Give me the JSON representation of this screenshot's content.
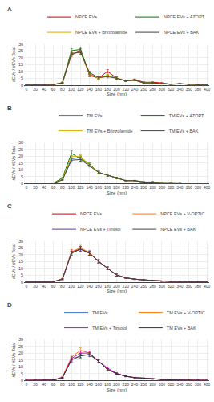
{
  "chart_data": [
    {
      "type": "line",
      "title": "A",
      "xlabel": "Size (nm)",
      "ylabel": "#EVs / #EVs Total",
      "x": [
        0,
        20,
        40,
        60,
        80,
        100,
        120,
        140,
        160,
        180,
        200,
        220,
        240,
        260,
        280,
        300,
        320,
        340,
        360,
        380,
        400
      ],
      "xlim": [
        -5,
        405
      ],
      "xticks": [
        0,
        20,
        40,
        60,
        80,
        100,
        120,
        140,
        160,
        180,
        200,
        220,
        240,
        260,
        280,
        300,
        320,
        340,
        360,
        380,
        400
      ],
      "ylim": [
        0,
        30
      ],
      "yticks": [
        0,
        5,
        10,
        15,
        20,
        25,
        30
      ],
      "grid": true,
      "legend": "above",
      "series": [
        {
          "name": "NPCE EVs",
          "color": "#cc0000",
          "values": [
            0,
            0,
            0,
            0.3,
            1.5,
            22,
            25,
            7,
            5,
            10,
            5,
            3,
            4,
            2,
            2,
            1.5,
            0.5,
            1,
            0.5,
            0.2,
            0
          ],
          "yerr": [
            0,
            0,
            0,
            0.1,
            0.3,
            1.5,
            1.5,
            1,
            0.8,
            1.2,
            0.8,
            0.4,
            0.4,
            0.3,
            0.3,
            0.2,
            0.1,
            0.2,
            0.1,
            0.05,
            0
          ]
        },
        {
          "name": "NPCE EVs + AZOPT",
          "color": "#007700",
          "values": [
            0,
            0,
            0,
            0.2,
            1.8,
            25,
            26,
            8,
            5,
            7,
            5,
            3,
            3.5,
            1.5,
            1.5,
            1,
            0.5,
            0.8,
            0.3,
            0.2,
            0
          ],
          "yerr": [
            0,
            0,
            0,
            0.1,
            0.3,
            1.5,
            1.5,
            1,
            0.8,
            0.8,
            0.8,
            0.4,
            0.4,
            0.2,
            0.2,
            0.2,
            0.1,
            0.1,
            0.1,
            0.05,
            0
          ]
        },
        {
          "name": "NPCE EVs + Brinzolamide",
          "color": "#ddaa00",
          "values": [
            0,
            0,
            0,
            0.2,
            1.5,
            23,
            24,
            8,
            5,
            7,
            5,
            3,
            3.5,
            1.5,
            1.5,
            1,
            0.5,
            0.8,
            0.3,
            0.2,
            0
          ],
          "yerr": [
            0,
            0,
            0,
            0.1,
            0.3,
            1.5,
            1.5,
            1,
            0.8,
            0.8,
            0.8,
            0.4,
            0.4,
            0.2,
            0.2,
            0.2,
            0.1,
            0.1,
            0.1,
            0.05,
            0
          ]
        },
        {
          "name": "NPCE EVs + BAK",
          "color": "#444444",
          "values": [
            0,
            0,
            0,
            0.2,
            1.5,
            23,
            24,
            9,
            5.5,
            6,
            5,
            3,
            3.5,
            1.5,
            1.5,
            1,
            0.5,
            0.8,
            0.3,
            0.2,
            0
          ],
          "yerr": [
            0,
            0,
            0,
            0.1,
            0.3,
            1.5,
            1.5,
            1,
            0.8,
            0.8,
            0.8,
            0.4,
            0.4,
            0.2,
            0.2,
            0.2,
            0.1,
            0.1,
            0.1,
            0.05,
            0
          ]
        }
      ]
    },
    {
      "type": "line",
      "title": "B",
      "xlabel": "Size (nm)",
      "ylabel": "#EVs / #EVs Total",
      "x": [
        0,
        20,
        40,
        60,
        80,
        100,
        120,
        140,
        160,
        180,
        200,
        220,
        240,
        260,
        280,
        300,
        320,
        340,
        360,
        380,
        400
      ],
      "xlim": [
        -5,
        405
      ],
      "xticks": [
        0,
        20,
        40,
        60,
        80,
        100,
        120,
        140,
        160,
        180,
        200,
        220,
        240,
        260,
        280,
        300,
        320,
        340,
        360,
        380,
        400
      ],
      "ylim": [
        0,
        30
      ],
      "yticks": [
        0,
        5,
        10,
        15,
        20,
        25,
        30
      ],
      "grid": true,
      "legend": "above",
      "series": [
        {
          "name": "TM EVs",
          "color": "#4472c4",
          "values": [
            0,
            0,
            0,
            0.2,
            3,
            18,
            19,
            14,
            8,
            6,
            4,
            2,
            2,
            1,
            1,
            0.5,
            0.5,
            0.5,
            0.2,
            0.2,
            0
          ],
          "yerr": [
            0,
            0,
            0,
            0.1,
            0.3,
            1.5,
            1.5,
            1,
            0.8,
            0.8,
            0.5,
            0.2,
            0.2,
            0.2,
            0.2,
            0.1,
            0.1,
            0.1,
            0.05,
            0.05,
            0
          ]
        },
        {
          "name": "TM EVs + AZOPT",
          "color": "#007700",
          "values": [
            0,
            0,
            0,
            0.2,
            4,
            22,
            18,
            14,
            8,
            6,
            4,
            2,
            2,
            1,
            1,
            0.5,
            0.5,
            0.5,
            0.2,
            0.2,
            0
          ],
          "yerr": [
            0,
            0,
            0,
            0.1,
            0.3,
            1.8,
            1.8,
            1.2,
            1,
            0.8,
            0.5,
            0.2,
            0.2,
            0.2,
            0.2,
            0.1,
            0.1,
            0.1,
            0.05,
            0.05,
            0
          ]
        },
        {
          "name": "TM EVs + Brinzolamide",
          "color": "#ddaa00",
          "values": [
            0,
            0,
            0,
            0.2,
            3,
            20,
            19.5,
            14,
            8,
            6,
            4,
            2,
            2,
            1,
            1,
            0.5,
            0.5,
            0.5,
            0.2,
            0.2,
            0
          ],
          "yerr": [
            0,
            0,
            0,
            0.1,
            0.3,
            1.5,
            1.5,
            1,
            0.8,
            0.8,
            0.5,
            0.2,
            0.2,
            0.2,
            0.2,
            0.1,
            0.1,
            0.1,
            0.05,
            0.05,
            0
          ]
        },
        {
          "name": "TM EVs + BAK",
          "color": "#444444",
          "values": [
            0,
            0,
            0,
            0.2,
            2.5,
            17,
            17.5,
            13,
            8,
            6,
            4,
            2,
            2,
            1,
            1,
            0.5,
            0.5,
            0.5,
            0.2,
            0.2,
            0
          ],
          "yerr": [
            0,
            0,
            0,
            0.1,
            0.3,
            1.5,
            1.5,
            1,
            0.8,
            0.8,
            0.5,
            0.2,
            0.2,
            0.2,
            0.2,
            0.1,
            0.1,
            0.1,
            0.05,
            0.05,
            0
          ]
        }
      ]
    },
    {
      "type": "line",
      "title": "C",
      "xlabel": "Size (nm)",
      "ylabel": "#EVs / #EVs Total",
      "x": [
        0,
        20,
        40,
        60,
        80,
        100,
        120,
        140,
        160,
        180,
        200,
        220,
        240,
        260,
        280,
        300,
        320,
        340,
        360,
        380,
        400
      ],
      "xlim": [
        -5,
        405
      ],
      "xticks": [
        0,
        20,
        40,
        60,
        80,
        100,
        120,
        140,
        160,
        180,
        200,
        220,
        240,
        260,
        280,
        300,
        320,
        340,
        360,
        380,
        400
      ],
      "ylim": [
        0,
        30
      ],
      "yticks": [
        0,
        5,
        10,
        15,
        20,
        25,
        30
      ],
      "grid": true,
      "legend": "above",
      "series": [
        {
          "name": "NPCE EVs",
          "color": "#cc0000",
          "values": [
            0,
            0,
            0,
            0.2,
            2,
            22,
            24,
            21,
            15,
            10,
            5,
            3,
            2,
            1.5,
            1,
            0.5,
            0.3,
            0.2,
            0.2,
            0.1,
            0
          ],
          "yerr": [
            0,
            0,
            0,
            0.1,
            0.3,
            1.5,
            1.8,
            1.5,
            1.2,
            1,
            0.8,
            0.4,
            0.2,
            0.2,
            0.1,
            0.1,
            0.1,
            0.05,
            0.05,
            0.05,
            0
          ]
        },
        {
          "name": "NPCE EVs + V-OPTIC",
          "color": "#ff7700",
          "values": [
            0,
            0,
            0,
            0.2,
            2.5,
            22,
            25,
            21.5,
            15,
            10,
            5,
            3,
            2,
            1.5,
            1,
            0.5,
            0.3,
            0.2,
            0.2,
            0.1,
            0
          ],
          "yerr": [
            0,
            0,
            0,
            0.1,
            0.3,
            1.5,
            1.8,
            1.5,
            1.2,
            1,
            0.8,
            0.4,
            0.2,
            0.2,
            0.1,
            0.1,
            0.1,
            0.05,
            0.05,
            0.05,
            0
          ]
        },
        {
          "name": "NPCE EVs + Timolol",
          "color": "#7030a0",
          "values": [
            0,
            0,
            0,
            0.2,
            2,
            21,
            24,
            21,
            15,
            10,
            5,
            3,
            2,
            1.5,
            1,
            0.5,
            0.3,
            0.2,
            0.2,
            0.1,
            0
          ],
          "yerr": [
            0,
            0,
            0,
            0.1,
            0.3,
            1.5,
            1.8,
            1.5,
            1.2,
            1,
            0.8,
            0.4,
            0.2,
            0.2,
            0.1,
            0.1,
            0.1,
            0.05,
            0.05,
            0.05,
            0
          ]
        },
        {
          "name": "NPCE EVs + BAK",
          "color": "#444444",
          "values": [
            0,
            0,
            0,
            0.2,
            2,
            21,
            24,
            21,
            15,
            10,
            5,
            3,
            2,
            1.5,
            1,
            0.5,
            0.3,
            0.2,
            0.2,
            0.1,
            0
          ],
          "yerr": [
            0,
            0,
            0,
            0.1,
            0.3,
            1.5,
            1.8,
            1.5,
            1.2,
            1,
            0.8,
            0.4,
            0.2,
            0.2,
            0.1,
            0.1,
            0.1,
            0.05,
            0.05,
            0.05,
            0
          ]
        }
      ]
    },
    {
      "type": "line",
      "title": "D",
      "xlabel": "Size (nm)",
      "ylabel": "#EVs / #EVs Total",
      "x": [
        0,
        20,
        40,
        60,
        80,
        100,
        120,
        140,
        160,
        180,
        200,
        220,
        240,
        260,
        280,
        300,
        320,
        340,
        360,
        380,
        400
      ],
      "xlim": [
        -5,
        405
      ],
      "xticks": [
        0,
        20,
        40,
        60,
        80,
        100,
        120,
        140,
        160,
        180,
        200,
        220,
        240,
        260,
        280,
        300,
        320,
        340,
        360,
        380,
        400
      ],
      "ylim": [
        0,
        30
      ],
      "yticks": [
        0,
        5,
        10,
        15,
        20,
        25,
        30
      ],
      "grid": true,
      "legend": "above",
      "series": [
        {
          "name": "TM EVs",
          "color": "#4472c4",
          "values": [
            0,
            0,
            0,
            0.2,
            2,
            15,
            18,
            19,
            14,
            8,
            5,
            3,
            2,
            1.5,
            1,
            0.5,
            0.3,
            0.2,
            0.2,
            0.1,
            0
          ],
          "yerr": [
            0,
            0,
            0,
            0.1,
            0.3,
            1.5,
            1.5,
            1.5,
            1,
            0.8,
            0.5,
            0.3,
            0.2,
            0.2,
            0.1,
            0.1,
            0.1,
            0.05,
            0.05,
            0.05,
            0
          ]
        },
        {
          "name": "TM EVs + V-OPTIC",
          "color": "#ff7700",
          "values": [
            0,
            0,
            0,
            0.2,
            2.5,
            17,
            22,
            20,
            14,
            8,
            5,
            3,
            2,
            1.5,
            1,
            0.5,
            0.3,
            0.2,
            0.2,
            0.1,
            0
          ],
          "yerr": [
            0,
            0,
            0,
            0.1,
            0.3,
            1.5,
            1.8,
            1.5,
            1,
            0.8,
            0.5,
            0.3,
            0.2,
            0.2,
            0.1,
            0.1,
            0.1,
            0.05,
            0.05,
            0.05,
            0
          ]
        },
        {
          "name": "TM EVs + Timolol",
          "color": "#cc00cc",
          "values": [
            0,
            0,
            0,
            0.2,
            2,
            16,
            20,
            20,
            14,
            9,
            5,
            3,
            2,
            1.5,
            1,
            0.5,
            0.3,
            0.2,
            0.2,
            0.1,
            0
          ],
          "yerr": [
            0,
            0,
            0,
            0.1,
            0.3,
            1.5,
            1.5,
            1.5,
            1,
            0.8,
            0.5,
            0.3,
            0.2,
            0.2,
            0.1,
            0.1,
            0.1,
            0.05,
            0.05,
            0.05,
            0
          ]
        },
        {
          "name": "TM EVs + BAK",
          "color": "#333333",
          "values": [
            0,
            0,
            0,
            0.2,
            2,
            15,
            18,
            19,
            14,
            8,
            5,
            3,
            2,
            1.5,
            1,
            0.5,
            0.3,
            0.2,
            0.2,
            0.1,
            0
          ],
          "yerr": [
            0,
            0,
            0,
            0.1,
            0.3,
            1.5,
            1.5,
            1.5,
            1,
            0.8,
            0.5,
            0.3,
            0.2,
            0.2,
            0.1,
            0.1,
            0.1,
            0.05,
            0.05,
            0.05,
            0
          ]
        }
      ]
    }
  ]
}
